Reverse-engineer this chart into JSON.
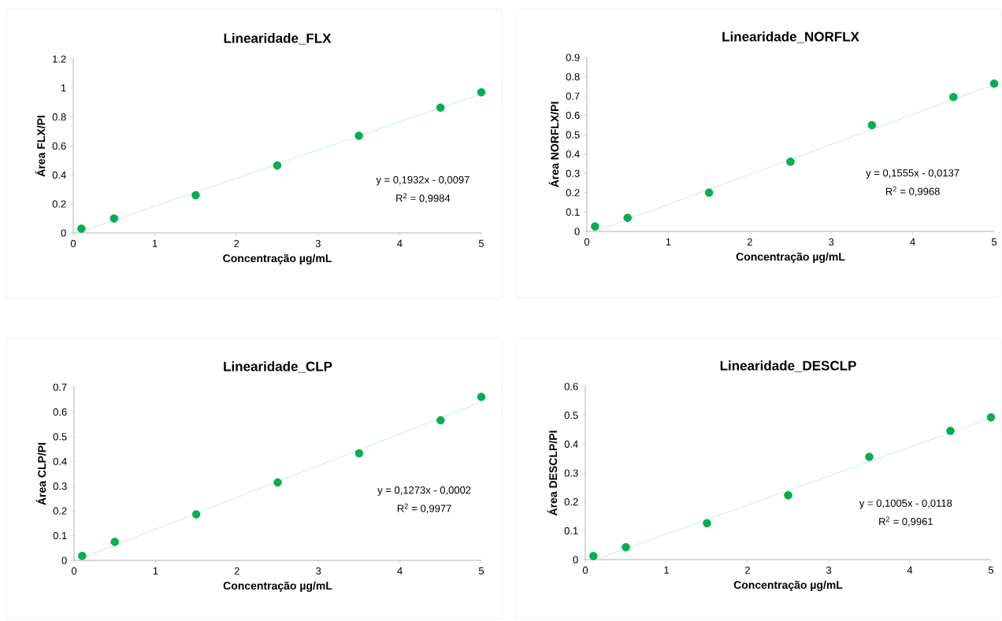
{
  "chart_data": [
    {
      "type": "scatter",
      "title": "Linearidade_FLX",
      "xlabel": "Concentração µg/mL",
      "ylabel": "Área FLX/PI",
      "x": [
        0.1,
        0.5,
        1.5,
        2.5,
        3.5,
        4.5,
        5
      ],
      "xlim": [
        0,
        5
      ],
      "xticks": [
        0,
        1,
        2,
        3,
        4,
        5
      ],
      "ylim": [
        0,
        1.2
      ],
      "yticks": [
        0,
        0.2,
        0.4,
        0.6,
        0.8,
        1,
        1.2
      ],
      "marker": "circle",
      "grid": false,
      "series": [
        {
          "color": "#00b050",
          "values": [
            0.03,
            0.1,
            0.26,
            0.465,
            0.67,
            0.865,
            0.97
          ]
        },
        {
          "type": "line",
          "color": "#92d9a8",
          "line_style": "dotted",
          "marker": "none",
          "x": [
            0.1,
            5
          ],
          "values": [
            0.01,
            0.96
          ]
        }
      ],
      "annotations": [
        "y = 0,1932x - 0,0097",
        "R$^{2}$ = 0,9984"
      ]
    },
    {
      "type": "scatter",
      "title": "Linearidade_NORFLX",
      "xlabel": "Concentração µg/mL",
      "ylabel": "Área NORFLX/PI",
      "x": [
        0.1,
        0.5,
        1.5,
        2.5,
        3.5,
        4.5,
        5
      ],
      "xlim": [
        0,
        5
      ],
      "xticks": [
        0,
        1,
        2,
        3,
        4,
        5
      ],
      "ylim": [
        0,
        0.9
      ],
      "yticks": [
        0,
        0.1,
        0.2,
        0.3,
        0.4,
        0.5,
        0.6,
        0.7,
        0.8,
        0.9
      ],
      "marker": "circle",
      "grid": false,
      "series": [
        {
          "color": "#00b050",
          "values": [
            0.025,
            0.07,
            0.2,
            0.36,
            0.55,
            0.695,
            0.765
          ]
        },
        {
          "type": "line",
          "color": "#92d9a8",
          "line_style": "dotted",
          "marker": "none",
          "x": [
            0.1,
            5
          ],
          "values": [
            0,
            0.76
          ]
        }
      ],
      "annotations": [
        "y = 0,1555x - 0,0137",
        "R$^{2}$ = 0,9968"
      ]
    },
    {
      "type": "scatter",
      "title": "Linearidade_CLP",
      "xlabel": "Concentração µg/mL",
      "ylabel": "Área CLP/PI",
      "x": [
        0.1,
        0.5,
        1.5,
        2.5,
        3.5,
        4.5,
        5
      ],
      "xlim": [
        0,
        5
      ],
      "xticks": [
        0,
        1,
        2,
        3,
        4,
        5
      ],
      "ylim": [
        0,
        0.7
      ],
      "yticks": [
        0,
        0.1,
        0.2,
        0.3,
        0.4,
        0.5,
        0.6,
        0.7
      ],
      "marker": "circle",
      "grid": false,
      "series": [
        {
          "color": "#00b050",
          "values": [
            0.018,
            0.075,
            0.186,
            0.315,
            0.433,
            0.566,
            0.661
          ]
        },
        {
          "type": "line",
          "color": "#92d9a8",
          "line_style": "dotted",
          "marker": "none",
          "x": [
            0.1,
            5
          ],
          "values": [
            0.01,
            0.64
          ]
        }
      ],
      "annotations": [
        "y = 0,1273x - 0,0002",
        "R$^{2}$ = 0,9977"
      ]
    },
    {
      "type": "scatter",
      "title": "Linearidade_DESCLP",
      "xlabel": "Concentração µg/mL",
      "ylabel": "Área DESCLP/PI",
      "x": [
        0.1,
        0.5,
        1.5,
        2.5,
        3.5,
        4.5,
        5
      ],
      "xlim": [
        0,
        5
      ],
      "xticks": [
        0,
        1,
        2,
        3,
        4,
        5
      ],
      "ylim": [
        0,
        0.6
      ],
      "yticks": [
        0,
        0.1,
        0.2,
        0.3,
        0.4,
        0.5,
        0.6
      ],
      "marker": "circle",
      "grid": false,
      "series": [
        {
          "color": "#00b050",
          "values": [
            0.012,
            0.043,
            0.126,
            0.223,
            0.356,
            0.446,
            0.493
          ]
        },
        {
          "type": "line",
          "color": "#92d9a8",
          "line_style": "dotted",
          "marker": "none",
          "x": [
            0.12,
            5
          ],
          "values": [
            0,
            0.49
          ]
        }
      ],
      "annotations": [
        "y = 0,1005x - 0,0118",
        "R$^{2}$ = 0,9961"
      ]
    }
  ]
}
